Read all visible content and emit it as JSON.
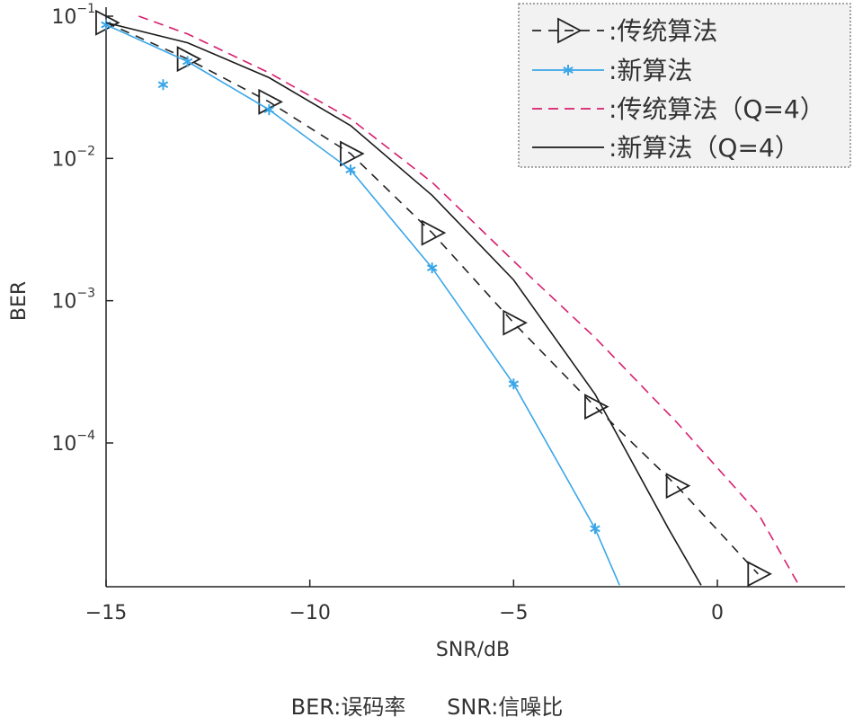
{
  "chart_data": {
    "type": "line",
    "title": "",
    "xlabel": "SNR/dB",
    "ylabel": "BER",
    "xlim": [
      -15,
      2.5
    ],
    "ylim_log10": [
      -5,
      -1
    ],
    "y_scale": "log",
    "grid": false,
    "legend_position": "top-right",
    "x_ticks": [
      {
        "value": -15,
        "label": "−15"
      },
      {
        "value": -10,
        "label": "−10"
      },
      {
        "value": -5,
        "label": "−5"
      },
      {
        "value": 0,
        "label": "0"
      }
    ],
    "y_ticks": [
      {
        "exp": -1,
        "base": "10",
        "sup": "−1"
      },
      {
        "exp": -2,
        "base": "10",
        "sup": "−2"
      },
      {
        "exp": -3,
        "base": "10",
        "sup": "−3"
      },
      {
        "exp": -4,
        "base": "10",
        "sup": "−4"
      }
    ],
    "series": [
      {
        "name": ":传统算法",
        "style": "dashed",
        "color": "#222222",
        "marker": "triangle-right",
        "x": [
          -15,
          -13,
          -11,
          -9,
          -7,
          -5,
          -3,
          -1,
          1
        ],
        "y": [
          0.09,
          0.05,
          0.025,
          0.0108,
          0.003,
          0.0007,
          0.00018,
          5e-05,
          1.2e-05
        ]
      },
      {
        "name": ":新算法",
        "style": "solid",
        "color": "#3aa6e8",
        "marker": "asterisk",
        "x": [
          -15,
          -13,
          -11,
          -9,
          -7,
          -5,
          -3,
          -2.4
        ],
        "y": [
          0.087,
          0.048,
          0.022,
          0.0083,
          0.0017,
          0.00026,
          2.5e-05,
          1e-05
        ],
        "marker_points": [
          [
            -15,
            0.087
          ],
          [
            -13.6,
            0.033
          ],
          [
            -13,
            0.048
          ],
          [
            -11,
            0.022
          ],
          [
            -9,
            0.0083
          ],
          [
            -7,
            0.0017
          ],
          [
            -5,
            0.00026
          ],
          [
            -3,
            2.5e-05
          ]
        ]
      },
      {
        "name": ":传统算法（Q=4）",
        "style": "dashed",
        "color": "#d61f6e",
        "marker": "none",
        "x": [
          -14.2,
          -13,
          -11,
          -9,
          -7,
          -5,
          -3,
          -1,
          1,
          2
        ],
        "y": [
          0.1,
          0.075,
          0.04,
          0.019,
          0.0068,
          0.0019,
          0.00055,
          0.00014,
          3.2e-05,
          1e-05
        ]
      },
      {
        "name": ":新算法（Q=4）",
        "style": "solid",
        "color": "#1a1a1a",
        "marker": "none",
        "x": [
          -15,
          -13,
          -11,
          -9,
          -7,
          -5,
          -3,
          -1.2,
          -0.4
        ],
        "y": [
          0.09,
          0.065,
          0.037,
          0.017,
          0.0055,
          0.0014,
          0.00022,
          2.5e-05,
          1e-05
        ]
      }
    ]
  },
  "legend": [
    {
      "text": ":传统算法"
    },
    {
      "text": ":新算法"
    },
    {
      "text": ":传统算法（Q=4）"
    },
    {
      "text": ":新算法（Q=4）"
    }
  ],
  "axis": {
    "xlabel": "SNR/dB",
    "ylabel": "BER"
  },
  "footnote": "BER:误码率      SNR:信噪比"
}
